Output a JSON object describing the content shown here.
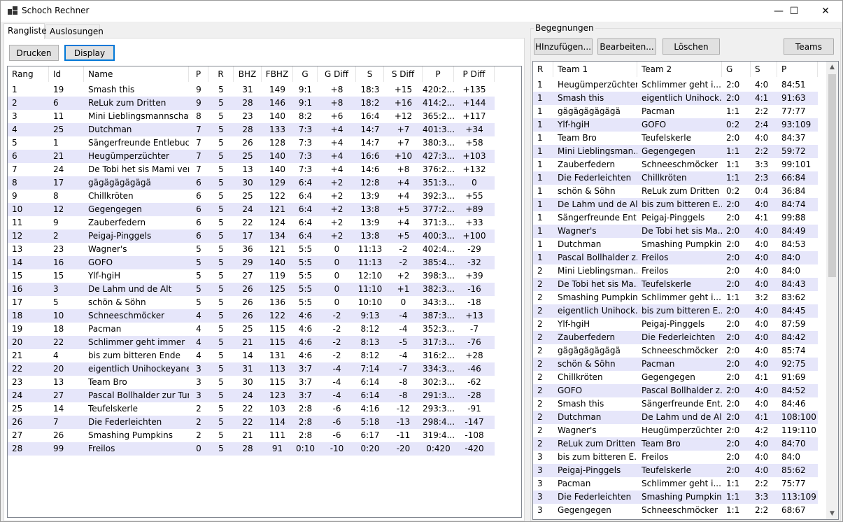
{
  "window": {
    "title": "Schoch Rechner",
    "minimize": "—",
    "maximize": "☐",
    "close": "✕"
  },
  "tabs": [
    {
      "label": "Rangliste"
    },
    {
      "label": "Auslosungen"
    }
  ],
  "toolbar": {
    "print_label": "Drucken",
    "display_label": "Display"
  },
  "ranking": {
    "columns": [
      "Rang",
      "Id",
      "Name",
      "P",
      "R",
      "BHZ",
      "FBHZ",
      "G",
      "G Diff",
      "S",
      "S Diff",
      "P",
      "P Diff"
    ],
    "rows": [
      [
        "1",
        "19",
        "Smash this",
        "9",
        "5",
        "31",
        "149",
        "9:1",
        "+8",
        "18:3",
        "+15",
        "420:2...",
        "+135"
      ],
      [
        "2",
        "6",
        "ReLuk zum Dritten",
        "9",
        "5",
        "28",
        "146",
        "9:1",
        "+8",
        "18:2",
        "+16",
        "414:2...",
        "+144"
      ],
      [
        "3",
        "11",
        "Mini Lieblingsmannschaft",
        "8",
        "5",
        "23",
        "140",
        "8:2",
        "+6",
        "16:4",
        "+12",
        "365:2...",
        "+117"
      ],
      [
        "4",
        "25",
        "Dutchman",
        "7",
        "5",
        "28",
        "133",
        "7:3",
        "+4",
        "14:7",
        "+7",
        "401:3...",
        "+34"
      ],
      [
        "5",
        "1",
        "Sängerfreunde Entlebuch",
        "7",
        "5",
        "26",
        "128",
        "7:3",
        "+4",
        "14:7",
        "+7",
        "380:3...",
        "+58"
      ],
      [
        "6",
        "21",
        "Heugümperzüchter",
        "7",
        "5",
        "25",
        "140",
        "7:3",
        "+4",
        "16:6",
        "+10",
        "427:3...",
        "+103"
      ],
      [
        "7",
        "24",
        "De Tobi het sis Mami ver...",
        "7",
        "5",
        "13",
        "140",
        "7:3",
        "+4",
        "14:6",
        "+8",
        "376:2...",
        "+132"
      ],
      [
        "8",
        "17",
        "gägägägägägä",
        "6",
        "5",
        "30",
        "129",
        "6:4",
        "+2",
        "12:8",
        "+4",
        "351:3...",
        "0"
      ],
      [
        "9",
        "8",
        "Chillkröten",
        "6",
        "5",
        "25",
        "122",
        "6:4",
        "+2",
        "13:9",
        "+4",
        "392:3...",
        "+55"
      ],
      [
        "10",
        "12",
        "Gegengegen",
        "6",
        "5",
        "24",
        "121",
        "6:4",
        "+2",
        "13:8",
        "+5",
        "377:2...",
        "+89"
      ],
      [
        "11",
        "9",
        "Zauberfedern",
        "6",
        "5",
        "22",
        "124",
        "6:4",
        "+2",
        "13:9",
        "+4",
        "371:3...",
        "+33"
      ],
      [
        "12",
        "2",
        "Peigaj-Pinggels",
        "6",
        "5",
        "17",
        "134",
        "6:4",
        "+2",
        "13:8",
        "+5",
        "400:3...",
        "+100"
      ],
      [
        "13",
        "23",
        "Wagner's",
        "5",
        "5",
        "36",
        "121",
        "5:5",
        "0",
        "11:13",
        "-2",
        "402:4...",
        "-29"
      ],
      [
        "14",
        "16",
        "GOFO",
        "5",
        "5",
        "29",
        "140",
        "5:5",
        "0",
        "11:13",
        "-2",
        "385:4...",
        "-32"
      ],
      [
        "15",
        "15",
        "Ylf-hgiH",
        "5",
        "5",
        "27",
        "119",
        "5:5",
        "0",
        "12:10",
        "+2",
        "398:3...",
        "+39"
      ],
      [
        "16",
        "3",
        "De Lahm und de Alt",
        "5",
        "5",
        "26",
        "125",
        "5:5",
        "0",
        "11:10",
        "+1",
        "382:3...",
        "-16"
      ],
      [
        "17",
        "5",
        "schön & Söhn",
        "5",
        "5",
        "26",
        "136",
        "5:5",
        "0",
        "10:10",
        "0",
        "343:3...",
        "-18"
      ],
      [
        "18",
        "10",
        "Schneeschmöcker",
        "4",
        "5",
        "26",
        "122",
        "4:6",
        "-2",
        "9:13",
        "-4",
        "387:3...",
        "+13"
      ],
      [
        "19",
        "18",
        "Pacman",
        "4",
        "5",
        "25",
        "115",
        "4:6",
        "-2",
        "8:12",
        "-4",
        "352:3...",
        "-7"
      ],
      [
        "20",
        "22",
        "Schlimmer geht immer",
        "4",
        "5",
        "21",
        "115",
        "4:6",
        "-2",
        "8:13",
        "-5",
        "317:3...",
        "-76"
      ],
      [
        "21",
        "4",
        "bis zum bitteren Ende",
        "4",
        "5",
        "14",
        "131",
        "4:6",
        "-2",
        "8:12",
        "-4",
        "316:2...",
        "+28"
      ],
      [
        "22",
        "20",
        "eigentlich Unihockeyaner",
        "3",
        "5",
        "31",
        "113",
        "3:7",
        "-4",
        "7:14",
        "-7",
        "334:3...",
        "-46"
      ],
      [
        "23",
        "13",
        "Team Bro",
        "3",
        "5",
        "30",
        "115",
        "3:7",
        "-4",
        "6:14",
        "-8",
        "302:3...",
        "-62"
      ],
      [
        "24",
        "27",
        "Pascal Bollhalder zur Tur...",
        "3",
        "5",
        "24",
        "123",
        "3:7",
        "-4",
        "6:14",
        "-8",
        "291:3...",
        "-28"
      ],
      [
        "25",
        "14",
        "Teufelskerle",
        "2",
        "5",
        "22",
        "103",
        "2:8",
        "-6",
        "4:16",
        "-12",
        "293:3...",
        "-91"
      ],
      [
        "26",
        "7",
        "Die Federleichten",
        "2",
        "5",
        "22",
        "114",
        "2:8",
        "-6",
        "5:18",
        "-13",
        "298:4...",
        "-147"
      ],
      [
        "27",
        "26",
        "Smashing Pumpkins",
        "2",
        "5",
        "21",
        "111",
        "2:8",
        "-6",
        "6:17",
        "-11",
        "319:4...",
        "-108"
      ],
      [
        "28",
        "99",
        "Freilos",
        "0",
        "5",
        "28",
        "91",
        "0:10",
        "-10",
        "0:20",
        "-20",
        "0:420",
        "-420"
      ]
    ]
  },
  "matches": {
    "group_label": "Begegnungen",
    "buttons": {
      "add": "HInzufügen...",
      "edit": "Bearbeiten...",
      "delete": "Löschen",
      "teams": "Teams"
    },
    "columns": [
      "R",
      "Team 1",
      "Team 2",
      "G",
      "S",
      "P"
    ],
    "rows": [
      [
        "1",
        "Heugümperzüchter",
        "Schlimmer geht i...",
        "2:0",
        "4:0",
        "84:51"
      ],
      [
        "1",
        "Smash this",
        "eigentlich Unihock...",
        "2:0",
        "4:1",
        "91:63"
      ],
      [
        "1",
        "gägägägägägä",
        "Pacman",
        "1:1",
        "2:2",
        "77:77"
      ],
      [
        "1",
        "Ylf-hgiH",
        "GOFO",
        "0:2",
        "2:4",
        "93:109"
      ],
      [
        "1",
        "Team Bro",
        "Teufelskerle",
        "2:0",
        "4:0",
        "84:37"
      ],
      [
        "1",
        "Mini Lieblingsman...",
        "Gegengegen",
        "1:1",
        "2:2",
        "59:72"
      ],
      [
        "1",
        "Zauberfedern",
        "Schneeschmöcker",
        "1:1",
        "3:3",
        "99:101"
      ],
      [
        "1",
        "Die Federleichten",
        "Chillkröten",
        "1:1",
        "2:3",
        "66:84"
      ],
      [
        "1",
        "schön & Söhn",
        "ReLuk zum Dritten",
        "0:2",
        "0:4",
        "36:84"
      ],
      [
        "1",
        "De Lahm und de Alt",
        "bis zum bitteren E...",
        "2:0",
        "4:0",
        "84:74"
      ],
      [
        "1",
        "Sängerfreunde Ent...",
        "Peigaj-Pinggels",
        "2:0",
        "4:1",
        "99:88"
      ],
      [
        "1",
        "Wagner's",
        "De Tobi het sis Ma...",
        "2:0",
        "4:0",
        "84:49"
      ],
      [
        "1",
        "Dutchman",
        "Smashing Pumpkins",
        "2:0",
        "4:0",
        "84:53"
      ],
      [
        "1",
        "Pascal Bollhalder z...",
        "Freilos",
        "2:0",
        "4:0",
        "84:0"
      ],
      [
        "2",
        "Mini Lieblingsman...",
        "Freilos",
        "2:0",
        "4:0",
        "84:0"
      ],
      [
        "2",
        "De Tobi het sis Ma...",
        "Teufelskerle",
        "2:0",
        "4:0",
        "84:43"
      ],
      [
        "2",
        "Smashing Pumpkins",
        "Schlimmer geht i...",
        "1:1",
        "3:2",
        "83:62"
      ],
      [
        "2",
        "eigentlich Unihock...",
        "bis zum bitteren E...",
        "2:0",
        "4:0",
        "84:45"
      ],
      [
        "2",
        "Ylf-hgiH",
        "Peigaj-Pinggels",
        "2:0",
        "4:0",
        "87:59"
      ],
      [
        "2",
        "Zauberfedern",
        "Die Federleichten",
        "2:0",
        "4:0",
        "84:42"
      ],
      [
        "2",
        "gägägägägägä",
        "Schneeschmöcker",
        "2:0",
        "4:0",
        "85:74"
      ],
      [
        "2",
        "schön & Söhn",
        "Pacman",
        "2:0",
        "4:0",
        "92:75"
      ],
      [
        "2",
        "Chillkröten",
        "Gegengegen",
        "2:0",
        "4:1",
        "91:69"
      ],
      [
        "2",
        "GOFO",
        "Pascal Bollhalder z...",
        "2:0",
        "4:0",
        "84:52"
      ],
      [
        "2",
        "Smash this",
        "Sängerfreunde Ent...",
        "2:0",
        "4:0",
        "84:46"
      ],
      [
        "2",
        "Dutchman",
        "De Lahm und de Alt",
        "2:0",
        "4:1",
        "108:100"
      ],
      [
        "2",
        "Wagner's",
        "Heugümperzüchter",
        "2:0",
        "4:2",
        "119:110"
      ],
      [
        "2",
        "ReLuk zum Dritten",
        "Team Bro",
        "2:0",
        "4:0",
        "84:70"
      ],
      [
        "3",
        "bis zum bitteren E...",
        "Freilos",
        "2:0",
        "4:0",
        "84:0"
      ],
      [
        "3",
        "Peigaj-Pinggels",
        "Teufelskerle",
        "2:0",
        "4:0",
        "85:62"
      ],
      [
        "3",
        "Pacman",
        "Schlimmer geht i...",
        "1:1",
        "2:2",
        "75:77"
      ],
      [
        "3",
        "Die Federleichten",
        "Smashing Pumpkins",
        "1:1",
        "3:3",
        "113:109"
      ],
      [
        "3",
        "Gegengegen",
        "Schneeschmöcker",
        "1:1",
        "2:2",
        "68:67"
      ]
    ]
  },
  "icons": {
    "scroll_up": "▲",
    "scroll_down": "▼"
  }
}
